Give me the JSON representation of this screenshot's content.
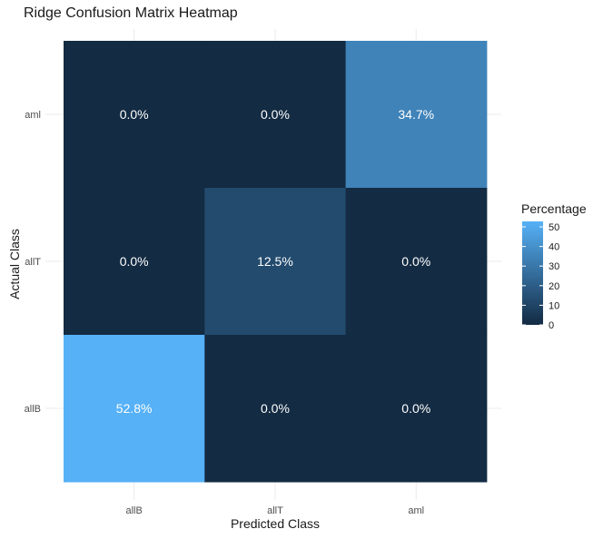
{
  "chart_data": {
    "type": "heatmap",
    "title": "Ridge Confusion Matrix Heatmap",
    "xlabel": "Predicted Class",
    "ylabel": "Actual Class",
    "x_categories": [
      "allB",
      "allT",
      "aml"
    ],
    "y_categories": [
      "allB",
      "allT",
      "aml"
    ],
    "cells": [
      {
        "actual": "aml",
        "predicted": "allB",
        "value": 0.0,
        "label": "0.0%"
      },
      {
        "actual": "aml",
        "predicted": "allT",
        "value": 0.0,
        "label": "0.0%"
      },
      {
        "actual": "aml",
        "predicted": "aml",
        "value": 34.7,
        "label": "34.7%"
      },
      {
        "actual": "allT",
        "predicted": "allB",
        "value": 0.0,
        "label": "0.0%"
      },
      {
        "actual": "allT",
        "predicted": "allT",
        "value": 12.5,
        "label": "12.5%"
      },
      {
        "actual": "allT",
        "predicted": "aml",
        "value": 0.0,
        "label": "0.0%"
      },
      {
        "actual": "allB",
        "predicted": "allB",
        "value": 52.8,
        "label": "52.8%"
      },
      {
        "actual": "allB",
        "predicted": "allT",
        "value": 0.0,
        "label": "0.0%"
      },
      {
        "actual": "allB",
        "predicted": "aml",
        "value": 0.0,
        "label": "0.0%"
      }
    ],
    "legend": {
      "title": "Percentage",
      "ticks": [
        0,
        10,
        20,
        30,
        40,
        50
      ],
      "range": [
        0,
        52.8
      ],
      "placement": "right"
    },
    "color_low": "#132B43",
    "color_high": "#56B1F7",
    "grid": true
  }
}
